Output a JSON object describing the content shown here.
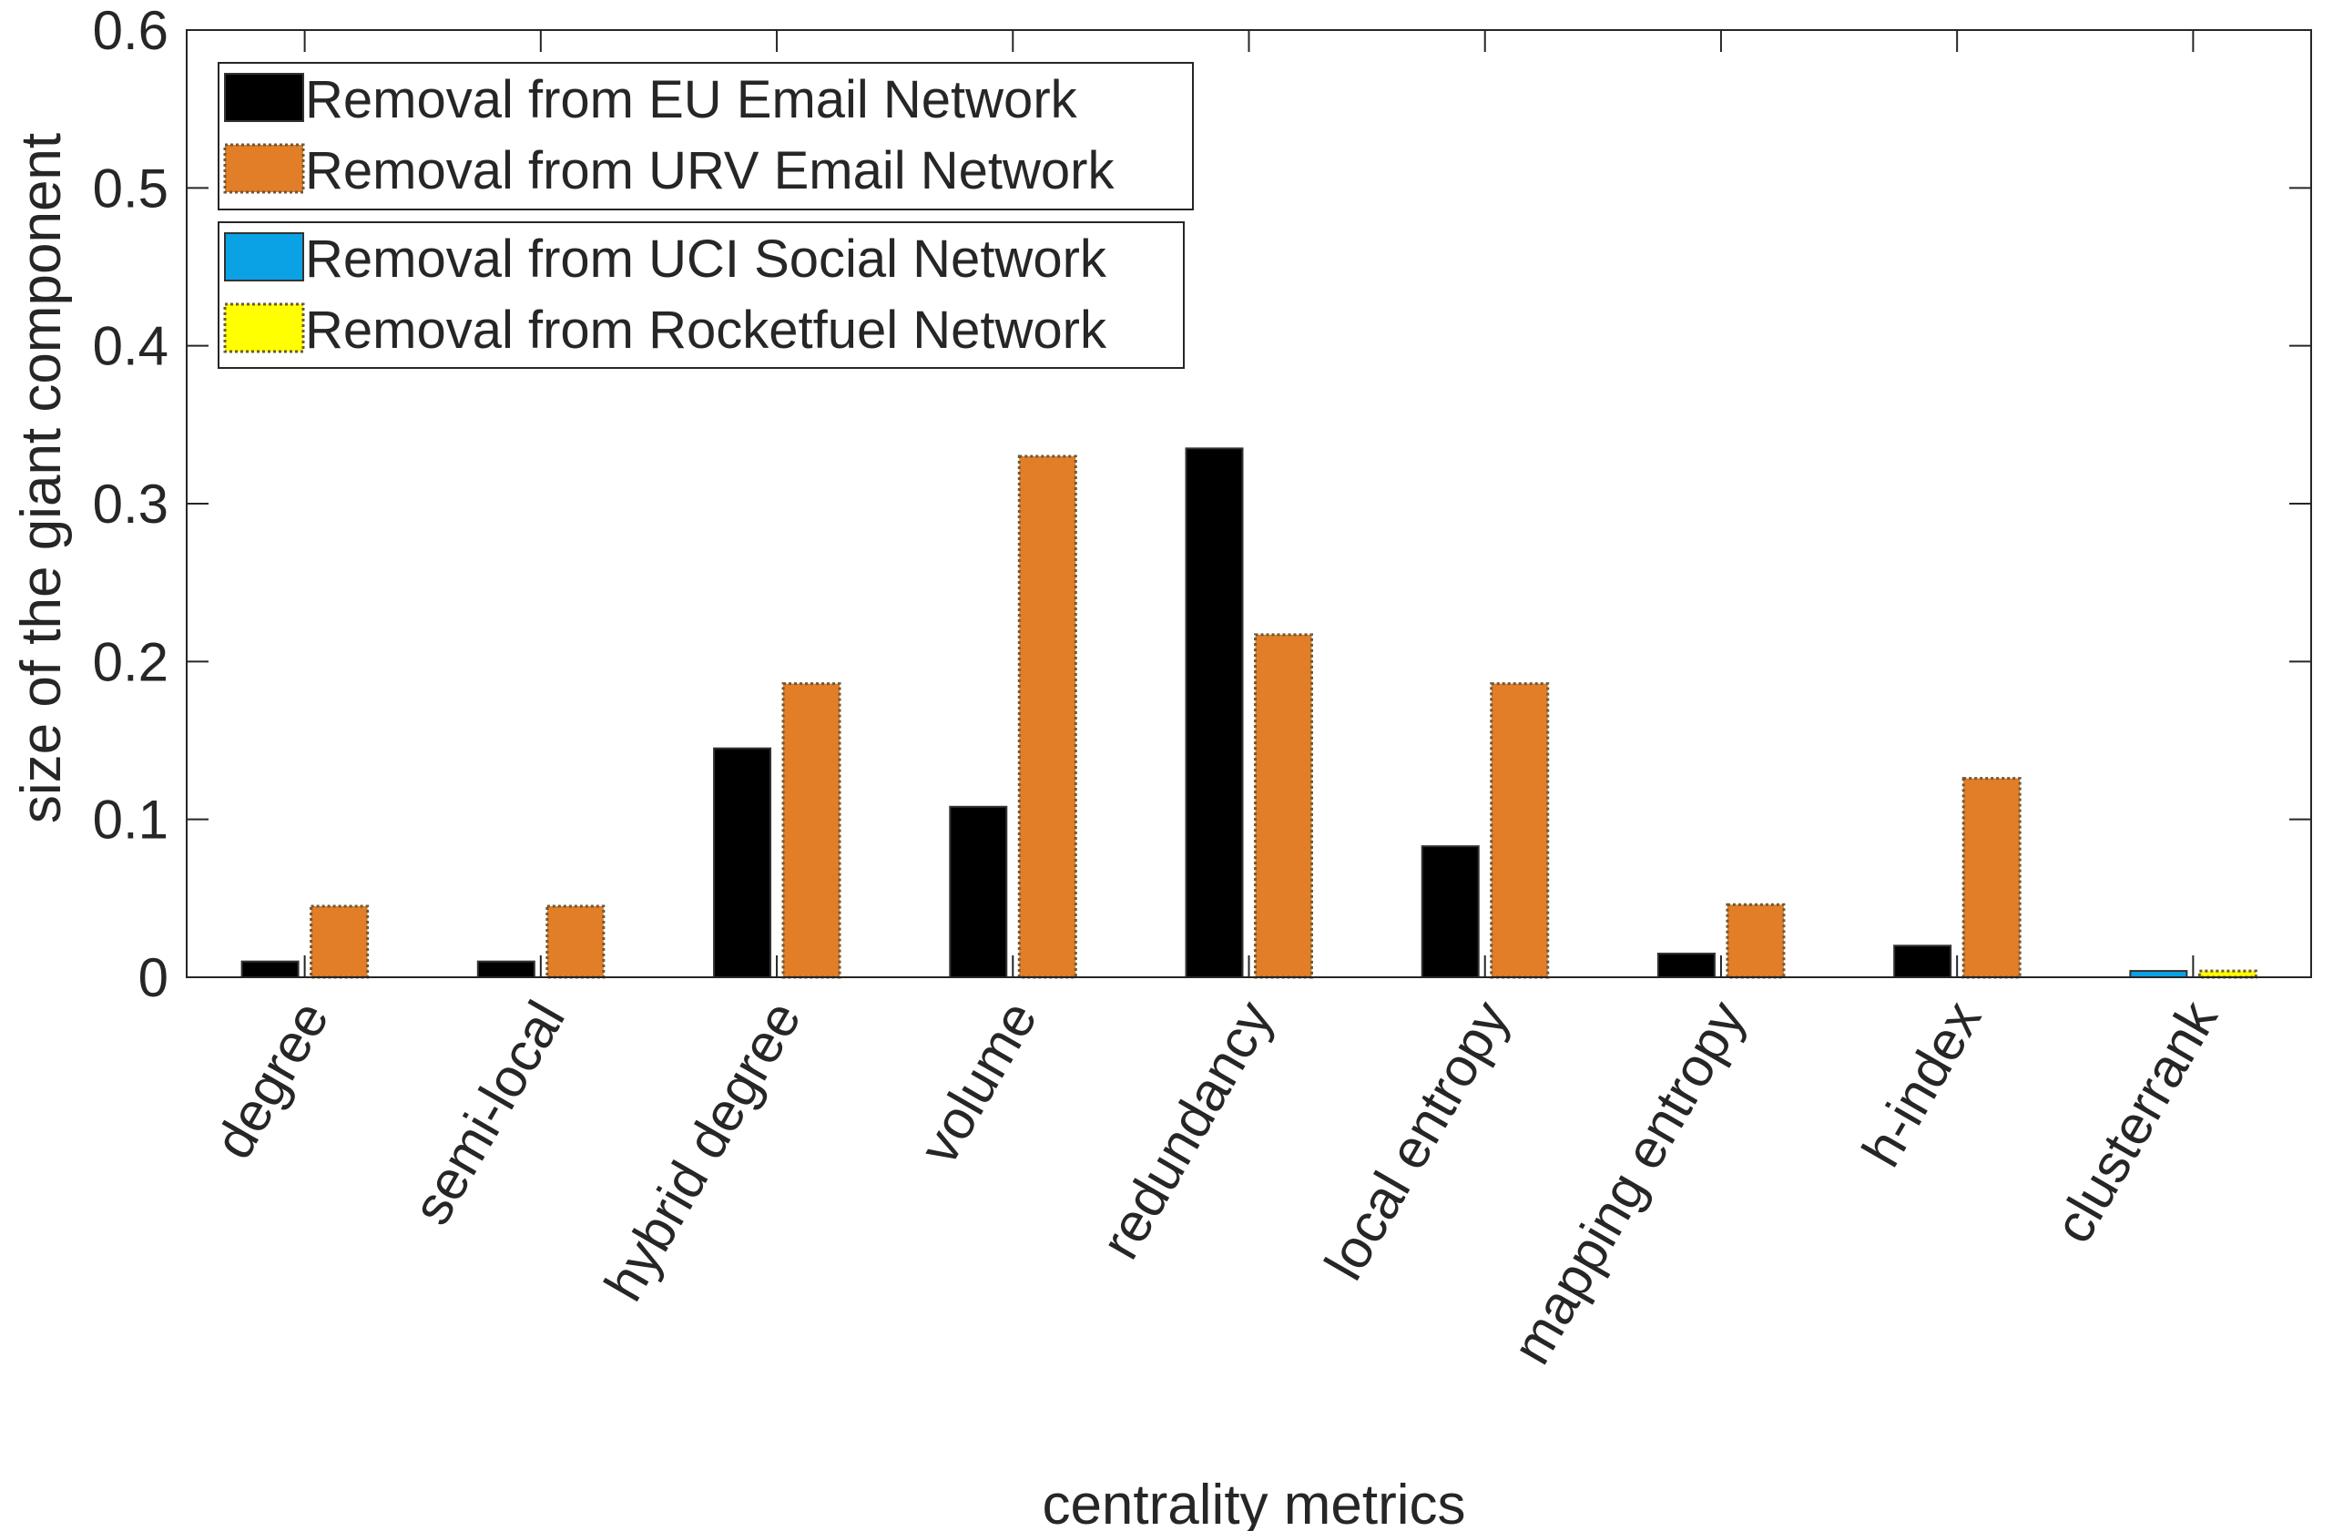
{
  "chart_data": {
    "type": "bar",
    "xlabel": "centrality metrics",
    "ylabel": "size of the giant component",
    "ylim": [
      0,
      0.6
    ],
    "yticks": [
      0,
      0.1,
      0.2,
      0.3,
      0.4,
      0.5,
      0.6
    ],
    "ytick_labels": [
      "0",
      "0.1",
      "0.2",
      "0.3",
      "0.4",
      "0.5",
      "0.6"
    ],
    "categories": [
      "degree",
      "semi-local",
      "hybrid degree",
      "volume",
      "redundancy",
      "local entropy",
      "mapping entropy",
      "h-index",
      "clusterrank"
    ],
    "series": [
      {
        "name": "Removal from EU Email Network",
        "color": "#000000",
        "values": [
          0.01,
          0.01,
          0.145,
          0.108,
          0.335,
          0.083,
          0.015,
          0.02,
          null
        ]
      },
      {
        "name": "Removal from URV Email Network",
        "color": "#E27E27",
        "values": [
          0.045,
          0.045,
          0.186,
          0.33,
          0.217,
          0.186,
          0.046,
          0.126,
          null
        ]
      },
      {
        "name": "Removal from UCI Social Network",
        "color": "#0BA2E5",
        "values": [
          null,
          null,
          null,
          null,
          null,
          null,
          null,
          null,
          0.004
        ]
      },
      {
        "name": "Removal from Rocketfuel Network",
        "color": "#FFFF00",
        "values": [
          null,
          null,
          null,
          null,
          null,
          null,
          null,
          null,
          0.004
        ]
      }
    ],
    "legend": {
      "placement": "top-left",
      "groups": [
        [
          0,
          1
        ],
        [
          2,
          3
        ]
      ]
    },
    "grid": false
  }
}
